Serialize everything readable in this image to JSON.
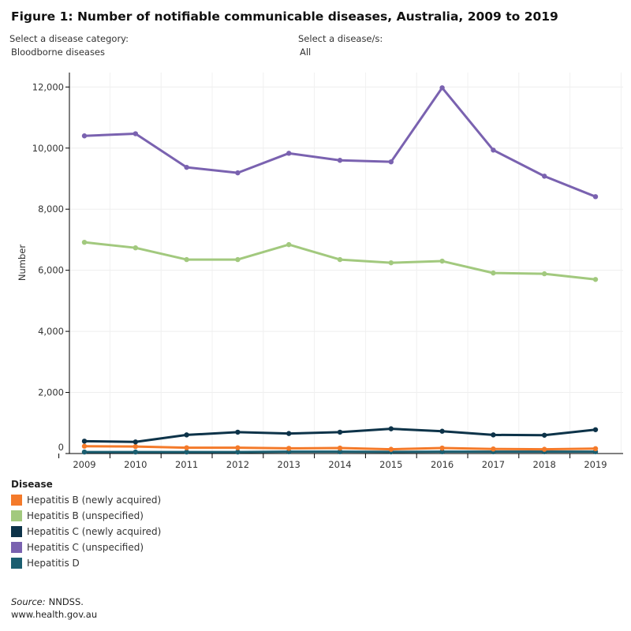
{
  "title": "Figure 1: Number of notifiable communicable diseases, Australia, 2009 to 2019",
  "filters": {
    "category_label": "Select a disease category:",
    "category_value": "Bloodborne diseases",
    "disease_label": "Select a disease/s:",
    "disease_value": "All"
  },
  "chart_data": {
    "type": "line",
    "title": "Figure 1: Number of notifiable communicable diseases, Australia, 2009 to 2019",
    "xlabel": "",
    "ylabel": "Number",
    "x": [
      "2009",
      "2010",
      "2011",
      "2012",
      "2013",
      "2014",
      "2015",
      "2016",
      "2017",
      "2018",
      "2019"
    ],
    "ylim": [
      0,
      12500
    ],
    "yticks": [
      0,
      2000,
      4000,
      6000,
      8000,
      10000,
      12000
    ],
    "ytick_labels": [
      "0",
      "2,000",
      "4,000",
      "6,000",
      "8,000",
      "10,000",
      "12,000"
    ],
    "grid": true,
    "legend_title": "Disease",
    "legend_position": "bottom-left",
    "series": [
      {
        "name": "Hepatitis B (newly acquired)",
        "color": "#f47a2a",
        "values": [
          240,
          230,
          190,
          190,
          170,
          180,
          140,
          180,
          150,
          140,
          160
        ]
      },
      {
        "name": "Hepatitis B (unspecified)",
        "color": "#a2c97e",
        "values": [
          6916,
          6735,
          6350,
          6350,
          6840,
          6350,
          6245,
          6300,
          5910,
          5885,
          5700
        ]
      },
      {
        "name": "Hepatitis C (newly acquired)",
        "color": "#0d3349",
        "values": [
          405,
          380,
          610,
          700,
          655,
          700,
          810,
          730,
          610,
          600,
          780
        ]
      },
      {
        "name": "Hepatitis C (unspecified)",
        "color": "#7a62b0",
        "values": [
          10400,
          10470,
          9370,
          9190,
          9830,
          9600,
          9550,
          11975,
          9935,
          9080,
          8410
        ]
      },
      {
        "name": "Hepatitis D",
        "color": "#1b5e70",
        "values": [
          50,
          50,
          50,
          50,
          60,
          60,
          55,
          60,
          60,
          60,
          60
        ]
      }
    ]
  },
  "source_label": "Source:",
  "source_text": "NNDSS.",
  "website": "www.health.gov.au"
}
